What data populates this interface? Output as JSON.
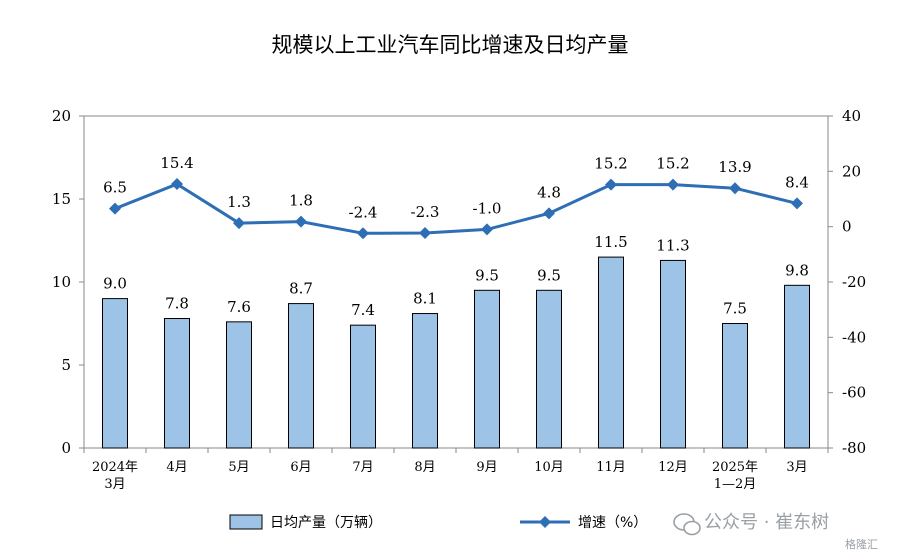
{
  "chart_data": {
    "type": "bar",
    "title": "规模以上工业汽车同比增速及日均产量",
    "categories": [
      [
        "2024年",
        "3月"
      ],
      [
        "4月"
      ],
      [
        "5月"
      ],
      [
        "6月"
      ],
      [
        "7月"
      ],
      [
        "8月"
      ],
      [
        "9月"
      ],
      [
        "10月"
      ],
      [
        "11月"
      ],
      [
        "12月"
      ],
      [
        "2025年",
        "1—2月"
      ],
      [
        "3月"
      ]
    ],
    "series": [
      {
        "name": "日均产量（万辆）",
        "type": "bar",
        "axis": "left",
        "color": "#9dc3e6",
        "stroke": "#000000",
        "values": [
          9.0,
          7.8,
          7.6,
          8.7,
          7.4,
          8.1,
          9.5,
          9.5,
          11.5,
          11.3,
          7.5,
          9.8
        ],
        "labels": [
          "9.0",
          "7.8",
          "7.6",
          "8.7",
          "7.4",
          "8.1",
          "9.5",
          "9.5",
          "11.5",
          "11.3",
          "7.5",
          "9.8"
        ]
      },
      {
        "name": "增速（%）",
        "type": "line",
        "axis": "right",
        "color": "#2e6eb4",
        "marker": "diamond",
        "values": [
          6.5,
          15.4,
          1.3,
          1.8,
          -2.4,
          -2.3,
          -1.0,
          4.8,
          15.2,
          15.2,
          13.9,
          8.4
        ],
        "labels": [
          "6.5",
          "15.4",
          "1.3",
          "1.8",
          "-2.4",
          "-2.3",
          "-1.0",
          "4.8",
          "15.2",
          "15.2",
          "13.9",
          "8.4"
        ]
      }
    ],
    "y_left": {
      "ylim": [
        0,
        20
      ],
      "ticks": [
        0,
        5,
        10,
        15,
        20
      ]
    },
    "y_right": {
      "ylim": [
        -80,
        40
      ],
      "ticks": [
        -80,
        -60,
        -40,
        -20,
        0,
        20,
        40
      ]
    },
    "legend_position": "bottom",
    "grid": false
  },
  "watermark": {
    "text": "公众号 · 崔东树",
    "badge": "格隆汇",
    "icon": "wechat-icon",
    "color": "#9aa0a6"
  }
}
